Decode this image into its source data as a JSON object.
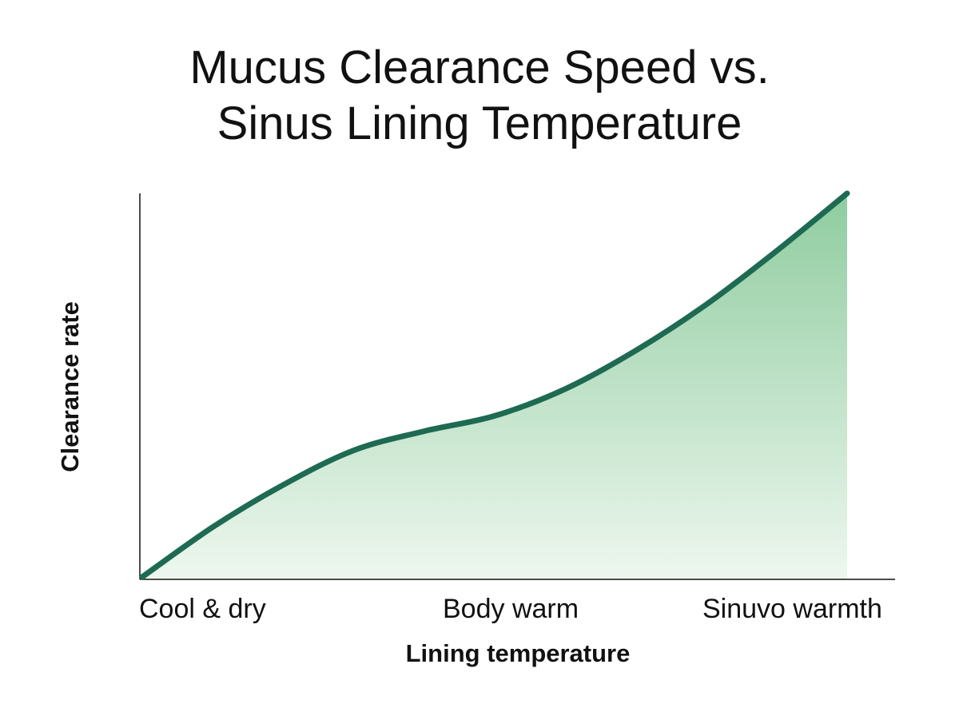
{
  "chart_data": {
    "type": "area",
    "title": "Mucus Clearance Speed vs. Sinus Lining Temperature",
    "title_lines": [
      "Mucus Clearance Speed vs.",
      "Sinus Lining Temperature"
    ],
    "xlabel": "Lining temperature",
    "ylabel": "Clearance rate",
    "x_tick_labels": [
      "Cool & dry",
      "Body warm",
      "Sinuvo warmth"
    ],
    "x": [
      0,
      0.1,
      0.2,
      0.3,
      0.4,
      0.5,
      0.6,
      0.7,
      0.8,
      0.9,
      1.0
    ],
    "y": [
      0,
      0.13,
      0.24,
      0.33,
      0.38,
      0.42,
      0.49,
      0.59,
      0.71,
      0.85,
      1.0
    ],
    "xlim": [
      0,
      1
    ],
    "ylim": [
      0,
      1
    ],
    "grid": false,
    "colors": {
      "line": "#1e6a52",
      "fill_top": "#8fcc9f",
      "fill_bottom": "#eef7ef",
      "axis": "#111111"
    }
  }
}
